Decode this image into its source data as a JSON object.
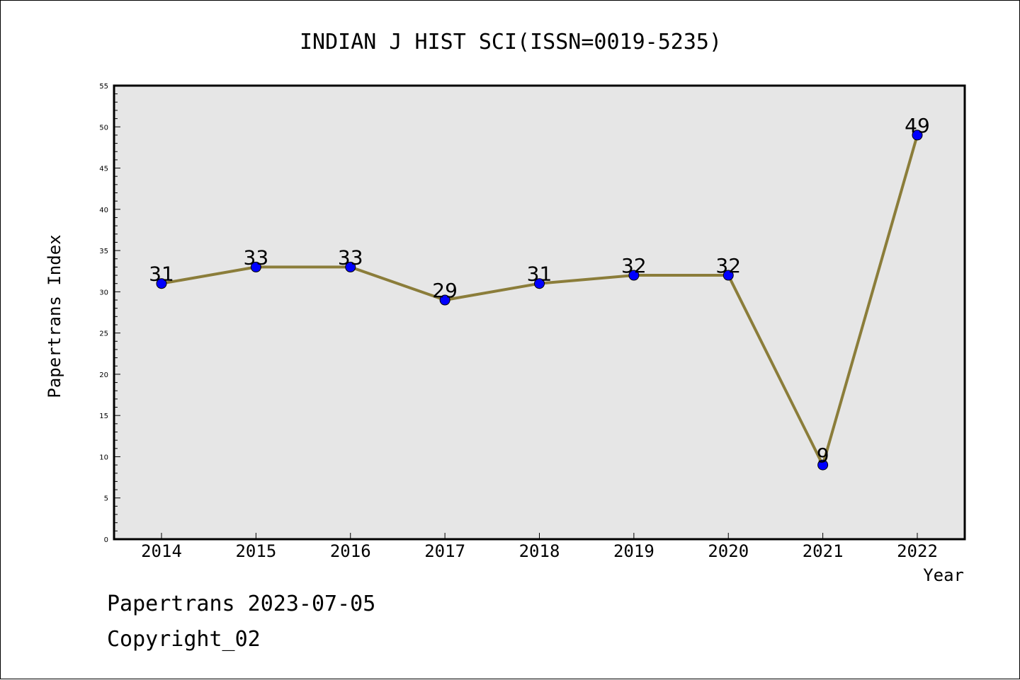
{
  "chart_data": {
    "type": "line",
    "title": "INDIAN J HIST SCI(ISSN=0019-5235)",
    "xlabel": "Year",
    "ylabel": "Papertrans Index",
    "categories": [
      "2014",
      "2015",
      "2016",
      "2017",
      "2018",
      "2019",
      "2020",
      "2021",
      "2022"
    ],
    "values": [
      31,
      33,
      33,
      29,
      31,
      32,
      32,
      9,
      49
    ],
    "data_labels": [
      "31",
      "33",
      "33",
      "29",
      "31",
      "32",
      "32",
      "9",
      "49"
    ],
    "ylim": [
      0,
      55
    ],
    "yticks": [
      "0",
      "5",
      "10",
      "15",
      "20",
      "25",
      "30",
      "35",
      "40",
      "45",
      "50",
      "55"
    ],
    "grid": false,
    "colors": {
      "line": "#8b7d3a",
      "marker": "#0000ff",
      "plot_background": "#e6e6e6"
    }
  },
  "footer": {
    "stamp": "Papertrans 2023-07-05",
    "copyright": "Copyright_02"
  }
}
